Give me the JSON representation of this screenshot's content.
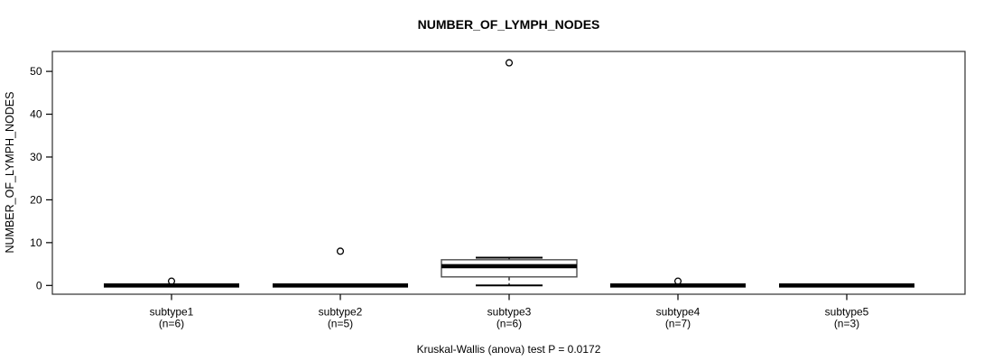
{
  "chart_data": {
    "type": "boxplot",
    "title": "NUMBER_OF_LYMPH_NODES",
    "ylabel": "NUMBER_OF_LYMPH_NODES",
    "xlabel": "",
    "annotation": "Kruskal-Wallis (anova) test P = 0.0172",
    "p_value": "0.0172",
    "yticks": [
      0,
      10,
      20,
      30,
      40,
      50
    ],
    "ylim": [
      -2,
      55
    ],
    "grid": false,
    "legend": "none",
    "groups": [
      {
        "label": "subtype1",
        "n_label": "(n=6)",
        "n": 6,
        "whisker_low": 0,
        "q1": 0,
        "median": 0,
        "q3": 0,
        "whisker_high": 0,
        "outliers": [
          1
        ]
      },
      {
        "label": "subtype2",
        "n_label": "(n=5)",
        "n": 5,
        "whisker_low": 0,
        "q1": 0,
        "median": 0,
        "q3": 0,
        "whisker_high": 0,
        "outliers": [
          8
        ]
      },
      {
        "label": "subtype3",
        "n_label": "(n=6)",
        "n": 6,
        "whisker_low": 0,
        "q1": 2,
        "median": 4.5,
        "q3": 6,
        "whisker_high": 6.5,
        "outliers": [
          52
        ]
      },
      {
        "label": "subtype4",
        "n_label": "(n=7)",
        "n": 7,
        "whisker_low": 0,
        "q1": 0,
        "median": 0,
        "q3": 0,
        "whisker_high": 0,
        "outliers": [
          1
        ]
      },
      {
        "label": "subtype5",
        "n_label": "(n=3)",
        "n": 3,
        "whisker_low": 0,
        "q1": 0,
        "median": 0,
        "q3": 0,
        "whisker_high": 0,
        "outliers": []
      }
    ],
    "colors": {
      "box_border": "#4d4d4d",
      "median": "#000000",
      "whisker": "#000000",
      "outlier": "#000000",
      "axis": "#2f2f2f",
      "background": "#ffffff"
    }
  }
}
